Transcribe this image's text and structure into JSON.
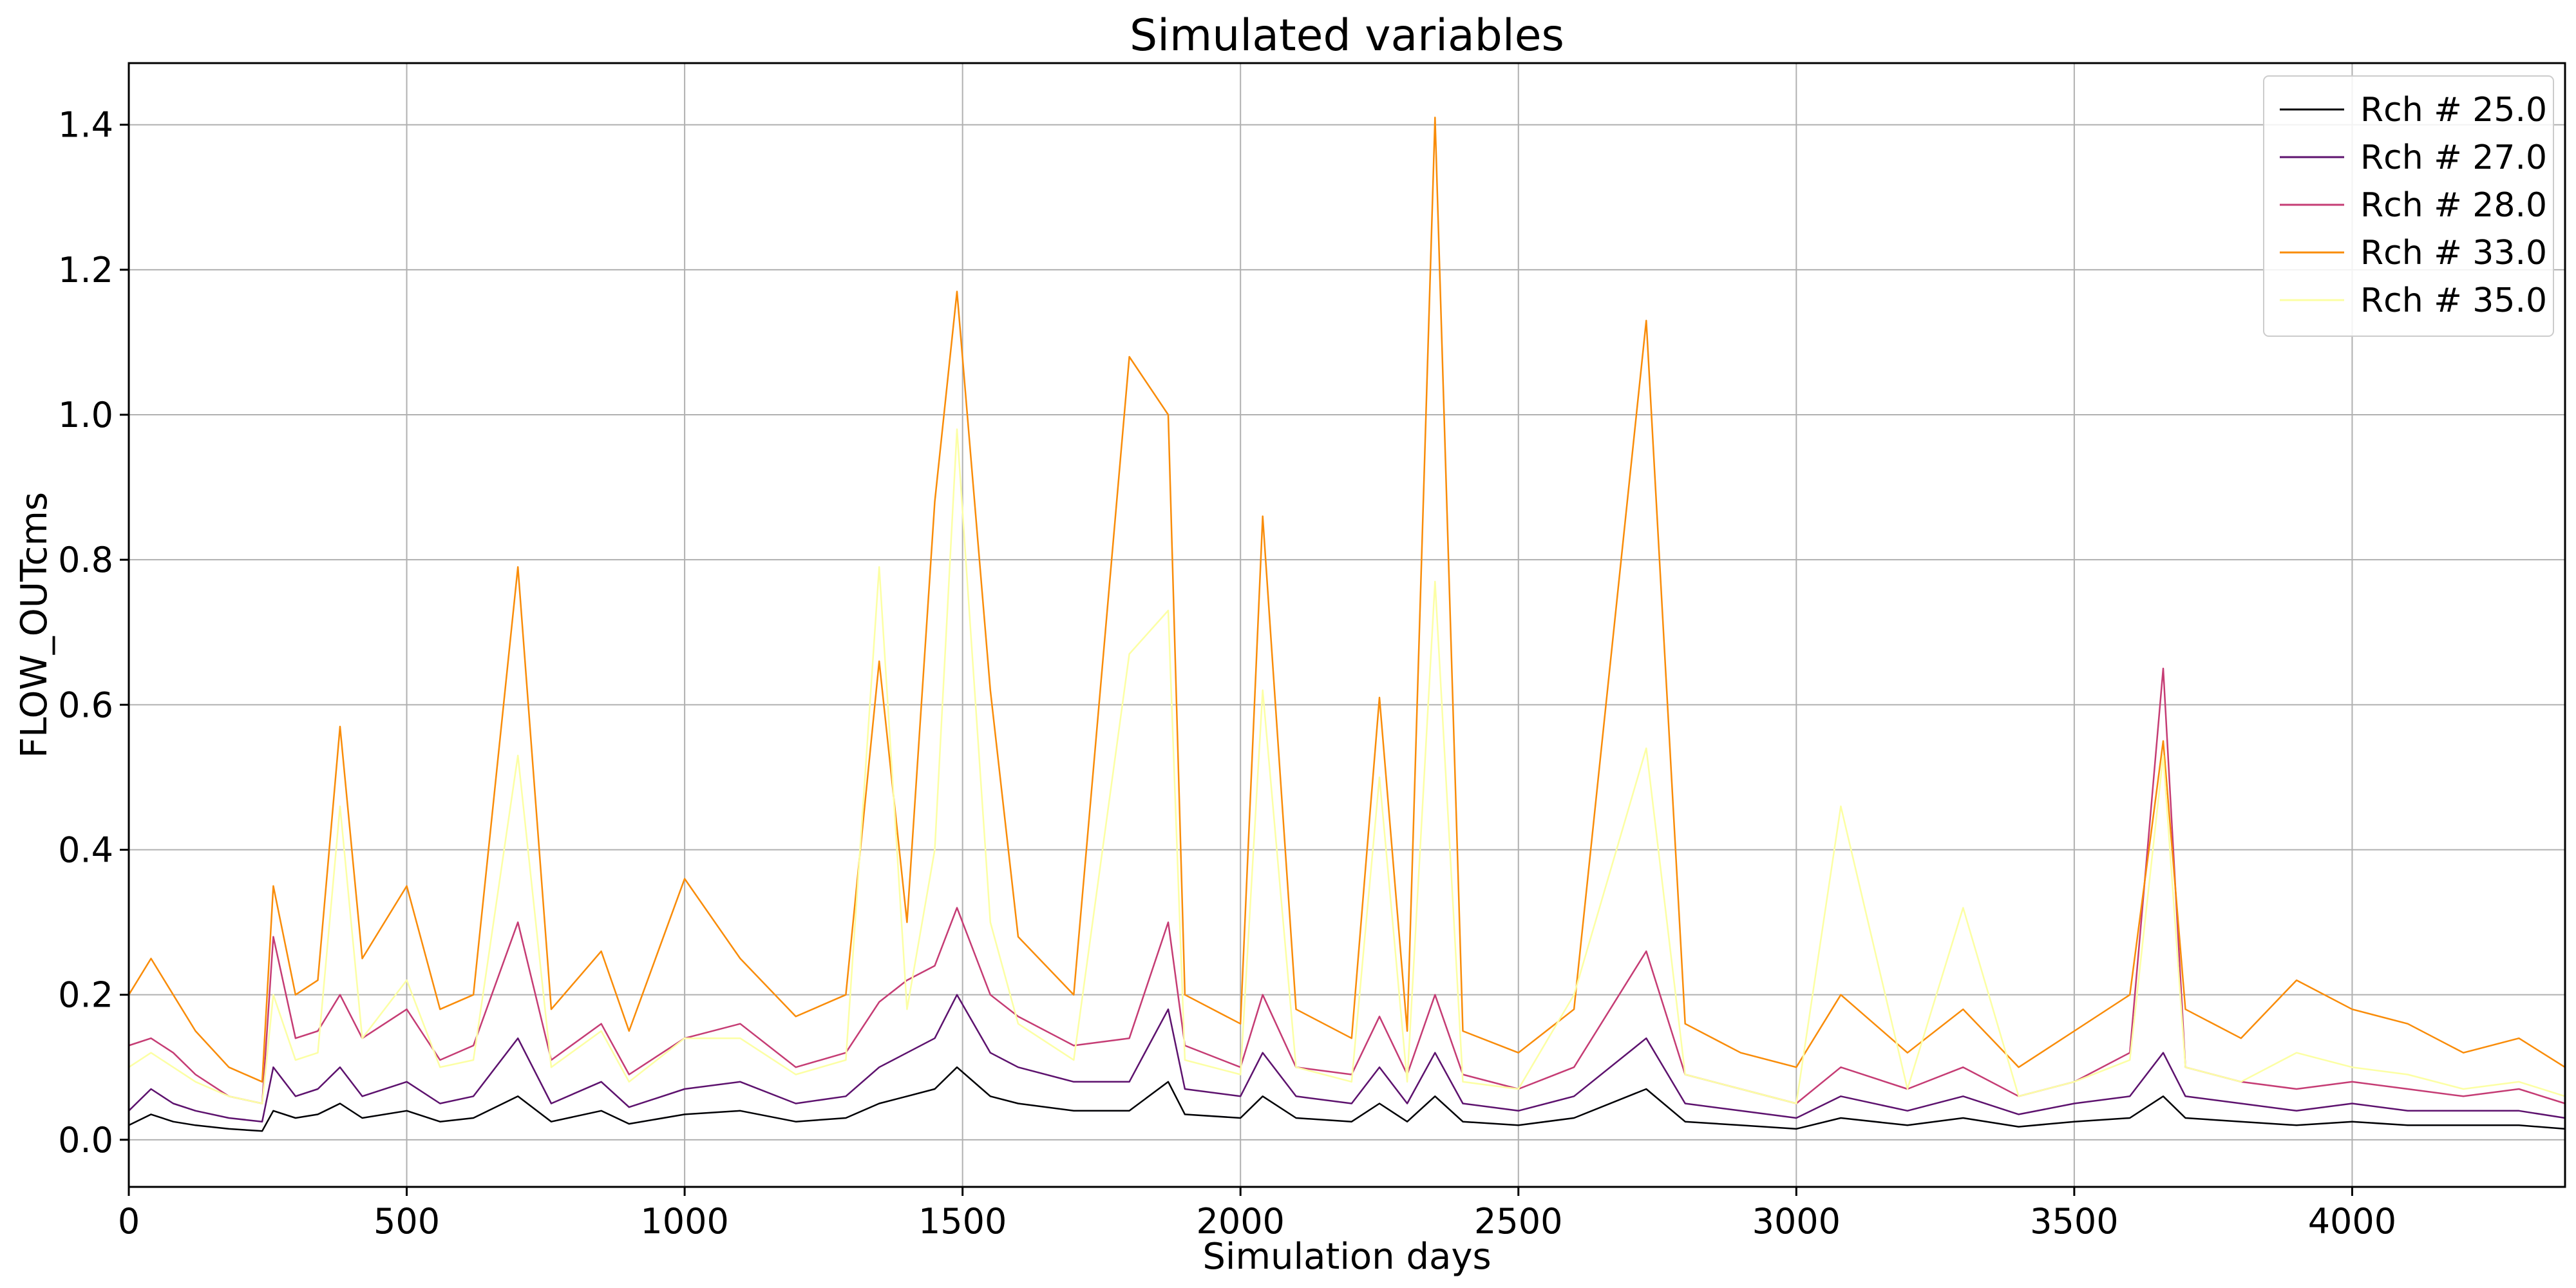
{
  "chart_data": {
    "type": "line",
    "title": "Simulated variables",
    "xlabel": "Simulation days",
    "ylabel": "FLOW_OUTcms",
    "xlim": [
      0,
      4383
    ],
    "ylim": [
      -0.065,
      1.485
    ],
    "xticks": [
      0,
      500,
      1000,
      1500,
      2000,
      2500,
      3000,
      3500,
      4000
    ],
    "xtick_labels": [
      "0",
      "500",
      "1000",
      "1500",
      "2000",
      "2500",
      "3000",
      "3500",
      "4000"
    ],
    "yticks": [
      0.0,
      0.2,
      0.4,
      0.6,
      0.8,
      1.0,
      1.2,
      1.4
    ],
    "ytick_labels": [
      "0.0",
      "0.2",
      "0.4",
      "0.6",
      "0.8",
      "1.0",
      "1.2",
      "1.4"
    ],
    "grid": true,
    "legend_position": "top-right",
    "series": [
      {
        "name": "Rch # 25.0",
        "color": "#000004",
        "x": [
          0,
          40,
          80,
          120,
          180,
          240,
          260,
          300,
          340,
          380,
          420,
          500,
          560,
          620,
          700,
          760,
          850,
          900,
          1000,
          1100,
          1200,
          1290,
          1350,
          1400,
          1450,
          1490,
          1550,
          1600,
          1700,
          1800,
          1870,
          1900,
          2000,
          2040,
          2100,
          2200,
          2250,
          2300,
          2350,
          2400,
          2500,
          2600,
          2730,
          2800,
          2900,
          3000,
          3080,
          3200,
          3300,
          3400,
          3500,
          3600,
          3660,
          3700,
          3800,
          3900,
          4000,
          4100,
          4200,
          4300,
          4383
        ],
        "y": [
          0.02,
          0.035,
          0.025,
          0.02,
          0.015,
          0.012,
          0.04,
          0.03,
          0.035,
          0.05,
          0.03,
          0.04,
          0.025,
          0.03,
          0.06,
          0.025,
          0.04,
          0.022,
          0.035,
          0.04,
          0.025,
          0.03,
          0.05,
          0.06,
          0.07,
          0.1,
          0.06,
          0.05,
          0.04,
          0.04,
          0.08,
          0.035,
          0.03,
          0.06,
          0.03,
          0.025,
          0.05,
          0.025,
          0.06,
          0.025,
          0.02,
          0.03,
          0.07,
          0.025,
          0.02,
          0.015,
          0.03,
          0.02,
          0.03,
          0.018,
          0.025,
          0.03,
          0.06,
          0.03,
          0.025,
          0.02,
          0.025,
          0.02,
          0.02,
          0.02,
          0.015
        ]
      },
      {
        "name": "Rch # 27.0",
        "color": "#5d126e",
        "x": [
          0,
          40,
          80,
          120,
          180,
          240,
          260,
          300,
          340,
          380,
          420,
          500,
          560,
          620,
          700,
          760,
          850,
          900,
          1000,
          1100,
          1200,
          1290,
          1350,
          1400,
          1450,
          1490,
          1550,
          1600,
          1700,
          1800,
          1870,
          1900,
          2000,
          2040,
          2100,
          2200,
          2250,
          2300,
          2350,
          2400,
          2500,
          2600,
          2730,
          2800,
          2900,
          3000,
          3080,
          3200,
          3300,
          3400,
          3500,
          3600,
          3660,
          3700,
          3800,
          3900,
          4000,
          4100,
          4200,
          4300,
          4383
        ],
        "y": [
          0.04,
          0.07,
          0.05,
          0.04,
          0.03,
          0.025,
          0.1,
          0.06,
          0.07,
          0.1,
          0.06,
          0.08,
          0.05,
          0.06,
          0.14,
          0.05,
          0.08,
          0.045,
          0.07,
          0.08,
          0.05,
          0.06,
          0.1,
          0.12,
          0.14,
          0.2,
          0.12,
          0.1,
          0.08,
          0.08,
          0.18,
          0.07,
          0.06,
          0.12,
          0.06,
          0.05,
          0.1,
          0.05,
          0.12,
          0.05,
          0.04,
          0.06,
          0.14,
          0.05,
          0.04,
          0.03,
          0.06,
          0.04,
          0.06,
          0.035,
          0.05,
          0.06,
          0.12,
          0.06,
          0.05,
          0.04,
          0.05,
          0.04,
          0.04,
          0.04,
          0.03
        ]
      },
      {
        "name": "Rch # 28.0",
        "color": "#c53c74",
        "x": [
          0,
          40,
          80,
          120,
          180,
          240,
          260,
          300,
          340,
          380,
          420,
          500,
          560,
          620,
          700,
          760,
          850,
          900,
          1000,
          1100,
          1200,
          1290,
          1350,
          1400,
          1450,
          1490,
          1550,
          1600,
          1700,
          1800,
          1870,
          1900,
          2000,
          2040,
          2100,
          2200,
          2250,
          2300,
          2350,
          2400,
          2500,
          2600,
          2730,
          2800,
          2900,
          3000,
          3080,
          3200,
          3300,
          3400,
          3500,
          3600,
          3660,
          3700,
          3800,
          3900,
          4000,
          4100,
          4200,
          4300,
          4383
        ],
        "y": [
          0.13,
          0.14,
          0.12,
          0.09,
          0.06,
          0.05,
          0.28,
          0.14,
          0.15,
          0.2,
          0.14,
          0.18,
          0.11,
          0.13,
          0.3,
          0.11,
          0.16,
          0.09,
          0.14,
          0.16,
          0.1,
          0.12,
          0.19,
          0.22,
          0.24,
          0.32,
          0.2,
          0.17,
          0.13,
          0.14,
          0.3,
          0.13,
          0.1,
          0.2,
          0.1,
          0.09,
          0.17,
          0.09,
          0.2,
          0.09,
          0.07,
          0.1,
          0.26,
          0.09,
          0.07,
          0.05,
          0.1,
          0.07,
          0.1,
          0.06,
          0.08,
          0.12,
          0.65,
          0.1,
          0.08,
          0.07,
          0.08,
          0.07,
          0.06,
          0.07,
          0.05
        ]
      },
      {
        "name": "Rch # 33.0",
        "color": "#f98c09",
        "x": [
          0,
          40,
          80,
          120,
          180,
          240,
          260,
          300,
          340,
          380,
          420,
          500,
          560,
          620,
          700,
          760,
          850,
          900,
          1000,
          1100,
          1200,
          1290,
          1350,
          1400,
          1450,
          1490,
          1550,
          1600,
          1700,
          1800,
          1870,
          1900,
          2000,
          2040,
          2100,
          2200,
          2250,
          2300,
          2350,
          2400,
          2500,
          2600,
          2730,
          2800,
          2900,
          3000,
          3080,
          3200,
          3300,
          3400,
          3500,
          3600,
          3660,
          3700,
          3800,
          3900,
          4000,
          4100,
          4200,
          4300,
          4383
        ],
        "y": [
          0.2,
          0.25,
          0.2,
          0.15,
          0.1,
          0.08,
          0.35,
          0.2,
          0.22,
          0.57,
          0.25,
          0.35,
          0.18,
          0.2,
          0.79,
          0.18,
          0.26,
          0.15,
          0.36,
          0.25,
          0.17,
          0.2,
          0.66,
          0.3,
          0.88,
          1.17,
          0.62,
          0.28,
          0.2,
          1.08,
          1.0,
          0.2,
          0.16,
          0.86,
          0.18,
          0.14,
          0.61,
          0.15,
          1.41,
          0.15,
          0.12,
          0.18,
          1.13,
          0.16,
          0.12,
          0.1,
          0.2,
          0.12,
          0.18,
          0.1,
          0.15,
          0.2,
          0.55,
          0.18,
          0.14,
          0.22,
          0.18,
          0.16,
          0.12,
          0.14,
          0.1
        ]
      },
      {
        "name": "Rch # 35.0",
        "color": "#fcffa4",
        "x": [
          0,
          40,
          80,
          120,
          180,
          240,
          260,
          300,
          340,
          380,
          420,
          500,
          560,
          620,
          700,
          760,
          850,
          900,
          1000,
          1100,
          1200,
          1290,
          1350,
          1400,
          1450,
          1490,
          1550,
          1600,
          1700,
          1800,
          1870,
          1900,
          2000,
          2040,
          2100,
          2200,
          2250,
          2300,
          2350,
          2400,
          2500,
          2600,
          2730,
          2800,
          2900,
          3000,
          3080,
          3200,
          3300,
          3400,
          3500,
          3600,
          3660,
          3700,
          3800,
          3900,
          4000,
          4100,
          4200,
          4300,
          4383
        ],
        "y": [
          0.1,
          0.12,
          0.1,
          0.08,
          0.06,
          0.05,
          0.2,
          0.11,
          0.12,
          0.46,
          0.14,
          0.22,
          0.1,
          0.11,
          0.53,
          0.1,
          0.15,
          0.08,
          0.14,
          0.14,
          0.09,
          0.11,
          0.79,
          0.18,
          0.4,
          0.98,
          0.3,
          0.16,
          0.11,
          0.67,
          0.73,
          0.11,
          0.09,
          0.62,
          0.1,
          0.08,
          0.5,
          0.08,
          0.77,
          0.08,
          0.07,
          0.2,
          0.54,
          0.09,
          0.07,
          0.05,
          0.46,
          0.07,
          0.32,
          0.06,
          0.08,
          0.11,
          0.53,
          0.1,
          0.08,
          0.12,
          0.1,
          0.09,
          0.07,
          0.08,
          0.06
        ]
      }
    ]
  }
}
